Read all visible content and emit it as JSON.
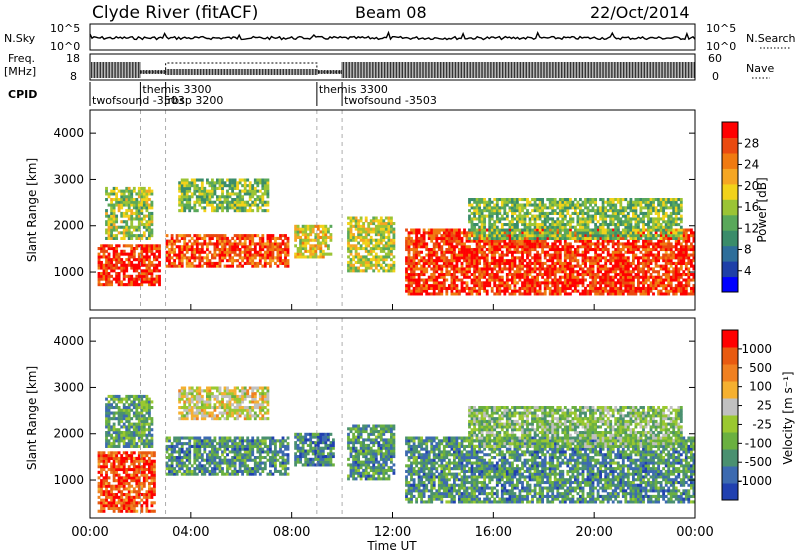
{
  "header": {
    "station": "Clyde River (fitACF)",
    "beam": "Beam 08",
    "date": "22/Oct/2014"
  },
  "noise_panel": {
    "left_label": "N.Sky",
    "right_label": "N.Search",
    "left_ticks": [
      "10^5",
      "10^0"
    ],
    "right_ticks": [
      "10^5",
      "10^0"
    ]
  },
  "freq_panel": {
    "left_label_1": "Freq.",
    "left_label_2": "[MHz]",
    "right_label": "Nave",
    "left_ticks": [
      "18",
      "8"
    ],
    "right_ticks": [
      "60",
      "0"
    ]
  },
  "cpid_panel": {
    "label": "CPID",
    "programs": [
      {
        "name": "twofsound",
        "id": "-3503",
        "start_hour": 0.0
      },
      {
        "name": "themis",
        "id": "3300",
        "start_hour": 2.0
      },
      {
        "name": "rbsp",
        "id": "3200",
        "start_hour": 3.0
      },
      {
        "name": "themis",
        "id": "3300",
        "start_hour": 9.0
      },
      {
        "name": "twofsound",
        "id": "-3503",
        "start_hour": 10.0
      }
    ]
  },
  "chart_data": [
    {
      "type": "heatmap",
      "panel": "power",
      "ylabel": "Slant Range [km]",
      "ylim": [
        180,
        4500
      ],
      "yticks": [
        1000,
        2000,
        3000,
        4000
      ],
      "xlim": [
        0,
        24
      ],
      "colorbar_label": "Power [dB]",
      "colorbar_ticks": [
        "4",
        "8",
        "12",
        "16",
        "20",
        "24",
        "28"
      ],
      "colors": [
        "#0000ff",
        "#1e3fa8",
        "#2e6e9a",
        "#3a8c6a",
        "#59a85a",
        "#9bc435",
        "#f2d21a",
        "#f5a623",
        "#f07a10",
        "#ea4a10",
        "#ff0000"
      ],
      "regions": [
        {
          "hours": [
            0.3,
            2.8
          ],
          "km": [
            700,
            1600
          ],
          "level": 0.92
        },
        {
          "hours": [
            0.6,
            2.5
          ],
          "km": [
            1700,
            2800
          ],
          "level": 0.5
        },
        {
          "hours": [
            3.0,
            7.8
          ],
          "km": [
            1100,
            1800
          ],
          "level": 0.85
        },
        {
          "hours": [
            3.5,
            7.0
          ],
          "km": [
            2300,
            3000
          ],
          "level": 0.45
        },
        {
          "hours": [
            8.1,
            9.5
          ],
          "km": [
            1300,
            2000
          ],
          "level": 0.6
        },
        {
          "hours": [
            10.2,
            12.0
          ],
          "km": [
            1000,
            2200
          ],
          "level": 0.55
        },
        {
          "hours": [
            12.5,
            24.0
          ],
          "km": [
            500,
            1900
          ],
          "level": 0.9
        },
        {
          "hours": [
            15.0,
            23.5
          ],
          "km": [
            1700,
            2600
          ],
          "level": 0.45
        }
      ]
    },
    {
      "type": "heatmap",
      "panel": "velocity",
      "ylabel": "Slant Range [km]",
      "ylim": [
        180,
        4500
      ],
      "yticks": [
        1000,
        2000,
        3000,
        4000
      ],
      "xlim": [
        0,
        24
      ],
      "colorbar_label": "Velocity [m s⁻¹]",
      "colorbar_ticks": [
        "1000",
        "500",
        "100",
        "25",
        "-25",
        "-100",
        "-500",
        "-1000"
      ],
      "colors": [
        "#2040b0",
        "#3c6ab0",
        "#4a9070",
        "#6ab040",
        "#9ac830",
        "#c0c0c0",
        "#f5b030",
        "#f08020",
        "#e85a10",
        "#ff0000"
      ],
      "regions": [
        {
          "hours": [
            0.3,
            2.6
          ],
          "km": [
            300,
            1600
          ],
          "level": 0.85
        },
        {
          "hours": [
            0.6,
            2.5
          ],
          "km": [
            1700,
            2800
          ],
          "level": 0.3
        },
        {
          "hours": [
            3.0,
            7.8
          ],
          "km": [
            1100,
            1900
          ],
          "level": 0.25
        },
        {
          "hours": [
            3.5,
            7.0
          ],
          "km": [
            2300,
            3000
          ],
          "level": 0.55
        },
        {
          "hours": [
            8.1,
            9.6
          ],
          "km": [
            1300,
            2000
          ],
          "level": 0.2
        },
        {
          "hours": [
            10.2,
            12.0
          ],
          "km": [
            1000,
            2200
          ],
          "level": 0.25
        },
        {
          "hours": [
            12.5,
            24.0
          ],
          "km": [
            500,
            1900
          ],
          "level": 0.25
        },
        {
          "hours": [
            15.0,
            23.5
          ],
          "km": [
            1700,
            2600
          ],
          "level": 0.4
        }
      ]
    }
  ],
  "x_axis": {
    "ticks": [
      "00:00",
      "04:00",
      "08:00",
      "12:00",
      "16:00",
      "20:00",
      "00:00"
    ],
    "label": "Time UT"
  }
}
